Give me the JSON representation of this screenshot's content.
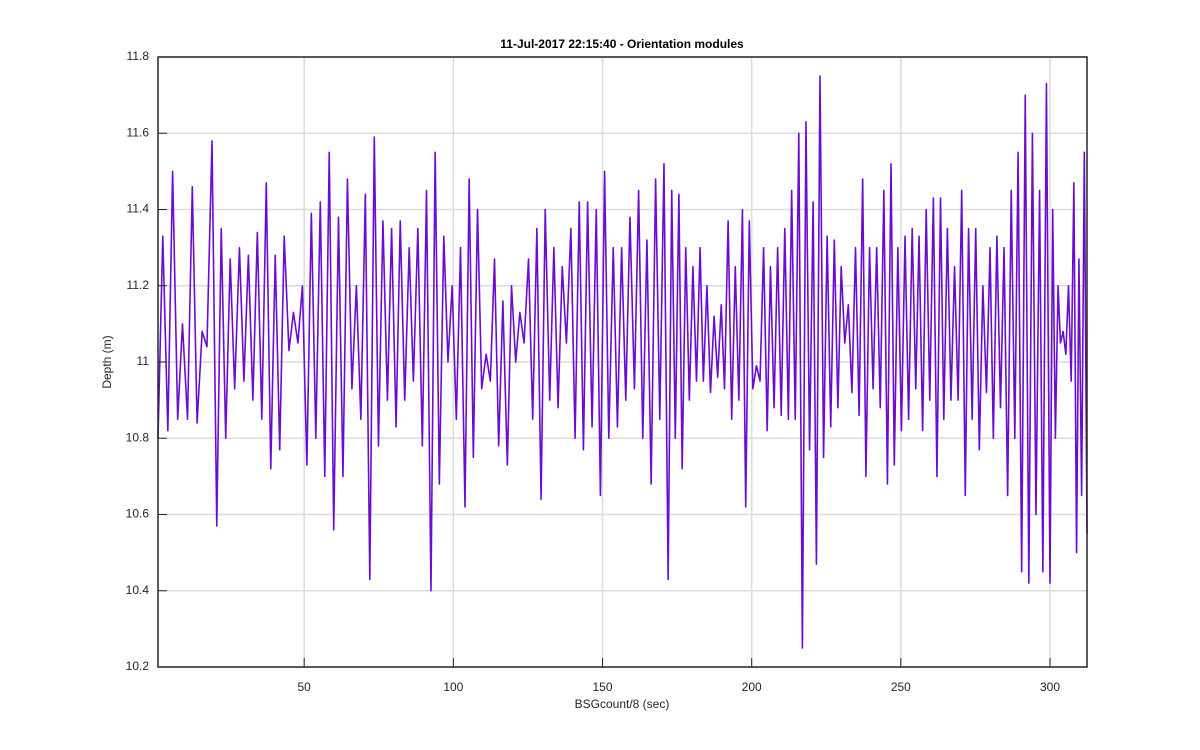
{
  "chart_data": {
    "type": "line",
    "title": "11-Jul-2017 22:15:40 - Orientation modules",
    "x_label": "BSGcount/8 (sec)",
    "y_label": "Depth (m)",
    "color": "#6a0dd1",
    "grid": true,
    "xlim": [
      1,
      312.4
    ],
    "ylim": [
      10.2,
      11.8
    ],
    "xticks": [
      50,
      100,
      150,
      200,
      250,
      300
    ],
    "yticks": [
      10.2,
      10.4,
      10.6,
      10.8,
      11,
      11.2,
      11.4,
      11.6,
      11.8
    ],
    "x": [
      1,
      2.6,
      4.3,
      5.9,
      7.6,
      9.2,
      10.9,
      12.5,
      14.1,
      15.8,
      17.4,
      19.1,
      20.7,
      22.2,
      23.7,
      25.2,
      26.7,
      28.3,
      29.8,
      31.3,
      32.8,
      34.3,
      35.8,
      37.3,
      38.8,
      40.3,
      41.8,
      43.3,
      44.9,
      46.4,
      47.9,
      49.4,
      50.9,
      52.4,
      53.9,
      55.4,
      56.9,
      58.4,
      59.9,
      61.5,
      63.0,
      64.5,
      66.0,
      67.5,
      69.0,
      70.5,
      72.0,
      73.5,
      74.9,
      76.4,
      77.9,
      79.3,
      80.8,
      82.2,
      83.7,
      85.2,
      86.6,
      88.1,
      89.6,
      91.0,
      92.5,
      93.9,
      95.3,
      96.8,
      98.2,
      99.6,
      101.0,
      102.4,
      103.9,
      105.3,
      106.7,
      108.1,
      109.5,
      111.0,
      112.4,
      113.8,
      115.2,
      116.6,
      118.1,
      119.5,
      120.9,
      122.3,
      123.7,
      125.2,
      126.6,
      128.0,
      129.4,
      130.8,
      132.3,
      133.7,
      135.1,
      136.5,
      137.9,
      139.4,
      140.8,
      142.2,
      143.6,
      145.0,
      146.5,
      147.9,
      149.3,
      150.7,
      152.1,
      153.6,
      155.0,
      156.4,
      157.8,
      159.2,
      160.7,
      162.1,
      163.5,
      164.9,
      166.3,
      167.8,
      169.2,
      170.6,
      172.0,
      173.2,
      174.4,
      175.6,
      176.7,
      177.9,
      179.1,
      180.3,
      181.5,
      182.7,
      183.8,
      185.0,
      186.2,
      187.4,
      188.6,
      189.8,
      190.9,
      192.1,
      193.3,
      194.5,
      195.7,
      196.9,
      198.0,
      199.2,
      200.4,
      201.6,
      202.8,
      204.0,
      205.2,
      206.3,
      207.5,
      208.7,
      209.9,
      211.1,
      212.3,
      213.4,
      214.6,
      215.8,
      217.0,
      218.2,
      219.4,
      220.6,
      221.7,
      222.9,
      224.1,
      225.3,
      226.5,
      227.7,
      228.9,
      230.0,
      231.2,
      232.4,
      233.6,
      234.8,
      236.0,
      237.2,
      238.3,
      239.5,
      240.7,
      241.9,
      243.1,
      244.3,
      245.5,
      246.7,
      247.8,
      249.0,
      250.2,
      251.4,
      252.6,
      253.8,
      255.0,
      256.1,
      257.3,
      258.5,
      259.7,
      260.9,
      262.1,
      263.3,
      264.4,
      265.6,
      266.8,
      268.0,
      269.2,
      270.4,
      271.6,
      272.7,
      273.9,
      275.1,
      276.3,
      277.5,
      278.7,
      279.9,
      281.0,
      282.2,
      283.4,
      284.6,
      285.8,
      287.0,
      288.2,
      289.3,
      290.5,
      291.7,
      292.9,
      294.1,
      295.3,
      296.5,
      297.6,
      298.8,
      300.0,
      300.9,
      301.8,
      302.7,
      303.5,
      304.4,
      305.3,
      306.2,
      307.1,
      308.0,
      308.9,
      309.7,
      310.6,
      311.5,
      312.4
    ],
    "values": [
      10.8,
      11.33,
      10.82,
      11.5,
      10.85,
      11.1,
      10.85,
      11.46,
      10.84,
      11.08,
      11.04,
      11.58,
      10.57,
      11.35,
      10.8,
      11.27,
      10.93,
      11.3,
      10.95,
      11.28,
      10.9,
      11.34,
      10.85,
      11.47,
      10.72,
      11.28,
      10.77,
      11.33,
      11.03,
      11.13,
      11.05,
      11.2,
      10.73,
      11.39,
      10.8,
      11.42,
      10.7,
      11.55,
      10.56,
      11.38,
      10.7,
      11.48,
      10.93,
      11.2,
      10.85,
      11.44,
      10.43,
      11.59,
      10.78,
      11.37,
      10.9,
      11.35,
      10.83,
      11.37,
      10.9,
      11.3,
      10.95,
      11.35,
      10.78,
      11.45,
      10.4,
      11.55,
      10.68,
      11.33,
      11.0,
      11.2,
      10.85,
      11.3,
      10.62,
      11.48,
      10.75,
      11.4,
      10.93,
      11.02,
      10.95,
      11.27,
      10.78,
      11.16,
      10.73,
      11.2,
      11.0,
      11.13,
      11.05,
      11.27,
      10.85,
      11.35,
      10.64,
      11.4,
      10.9,
      11.3,
      10.88,
      11.25,
      11.05,
      11.35,
      10.8,
      11.42,
      10.77,
      11.42,
      10.83,
      11.4,
      10.65,
      11.5,
      10.8,
      11.3,
      10.83,
      11.3,
      10.9,
      11.38,
      10.93,
      11.45,
      10.8,
      11.32,
      10.68,
      11.48,
      10.85,
      11.52,
      10.43,
      11.45,
      10.8,
      11.44,
      10.72,
      11.3,
      10.9,
      11.25,
      10.95,
      11.3,
      10.95,
      11.2,
      10.92,
      11.12,
      10.96,
      11.15,
      10.93,
      11.37,
      10.85,
      11.25,
      10.9,
      11.4,
      10.62,
      11.37,
      10.93,
      10.99,
      10.95,
      11.3,
      10.82,
      11.25,
      10.88,
      11.3,
      10.86,
      11.35,
      10.85,
      11.45,
      10.85,
      11.6,
      10.25,
      11.63,
      10.77,
      11.42,
      10.47,
      11.75,
      10.75,
      11.33,
      10.83,
      11.32,
      10.88,
      11.25,
      11.05,
      11.15,
      10.92,
      11.3,
      10.86,
      11.48,
      10.7,
      11.3,
      10.93,
      11.3,
      10.88,
      11.45,
      10.68,
      11.52,
      10.73,
      11.3,
      10.82,
      11.33,
      10.85,
      11.35,
      10.93,
      11.33,
      10.82,
      11.4,
      10.9,
      11.43,
      10.7,
      11.43,
      10.85,
      11.35,
      10.9,
      11.25,
      10.9,
      11.45,
      10.65,
      11.35,
      10.85,
      11.35,
      10.77,
      11.2,
      10.92,
      11.3,
      10.8,
      11.33,
      10.88,
      11.3,
      10.65,
      11.45,
      10.8,
      11.55,
      10.45,
      11.7,
      10.42,
      11.6,
      10.6,
      11.45,
      10.45,
      11.73,
      10.42,
      11.4,
      10.8,
      11.2,
      11.05,
      11.08,
      11.02,
      11.2,
      10.95,
      11.47,
      10.5,
      11.27,
      10.65,
      11.55,
      10.55
    ]
  }
}
